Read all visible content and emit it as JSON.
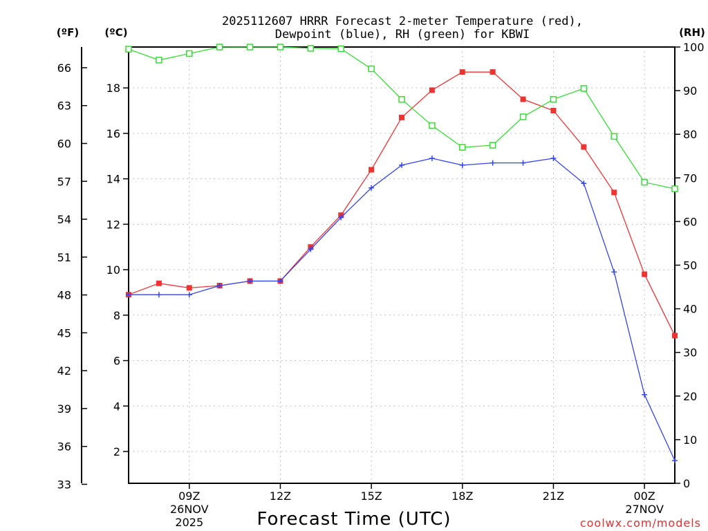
{
  "chart_data": {
    "type": "line",
    "title_line1": "2025112607 HRRR Forecast 2-meter Temperature (red),",
    "title_line2": "Dewpoint (blue), RH (green) for KBWI",
    "xlabel": "Forecast Time (UTC)",
    "left_unit_f": "(ºF)",
    "left_unit_c": "(ºC)",
    "right_unit": "(RH)",
    "credit": "coolwx.com/models",
    "x_hours": [
      7,
      8,
      9,
      10,
      11,
      12,
      13,
      14,
      15,
      16,
      17,
      18,
      19,
      20,
      21,
      22,
      23,
      24,
      25
    ],
    "x_ticks": [
      {
        "hour": 9,
        "label": "09Z",
        "sub1": "26NOV",
        "sub2": "2025"
      },
      {
        "hour": 12,
        "label": "12Z",
        "sub1": "",
        "sub2": ""
      },
      {
        "hour": 15,
        "label": "15Z",
        "sub1": "",
        "sub2": ""
      },
      {
        "hour": 18,
        "label": "18Z",
        "sub1": "",
        "sub2": ""
      },
      {
        "hour": 21,
        "label": "21Z",
        "sub1": "",
        "sub2": ""
      },
      {
        "hour": 24,
        "label": "00Z",
        "sub1": "27NOV",
        "sub2": ""
      }
    ],
    "xlim": [
      7,
      25
    ],
    "ylim_c": [
      0.6,
      19.8
    ],
    "ylim_rh": [
      0,
      100
    ],
    "c_ticks": [
      2,
      4,
      6,
      8,
      10,
      12,
      14,
      16,
      18
    ],
    "f_ticks": [
      33,
      36,
      39,
      42,
      45,
      48,
      51,
      54,
      57,
      60,
      63,
      66
    ],
    "rh_ticks": [
      0,
      10,
      20,
      30,
      40,
      50,
      60,
      70,
      80,
      90,
      100
    ],
    "series": [
      {
        "name": "Temperature",
        "color": "#ee3333",
        "marker": "filled-square",
        "axis": "c",
        "values": [
          8.9,
          9.4,
          9.2,
          9.3,
          9.5,
          9.5,
          11.0,
          12.4,
          14.4,
          16.7,
          17.9,
          18.7,
          18.7,
          17.5,
          17.0,
          15.4,
          13.4,
          9.8,
          7.1
        ]
      },
      {
        "name": "Dewpoint",
        "color": "#3344ee",
        "marker": "plus",
        "axis": "c",
        "values": [
          8.9,
          8.9,
          8.9,
          9.3,
          9.5,
          9.5,
          10.9,
          12.3,
          13.6,
          14.6,
          14.9,
          14.6,
          14.7,
          14.7,
          14.9,
          13.8,
          9.9,
          4.5,
          1.6
        ]
      },
      {
        "name": "RH",
        "color": "#33dd33",
        "marker": "open-square",
        "axis": "rh",
        "values": [
          99.5,
          97.0,
          98.5,
          100,
          100,
          100,
          99.7,
          99.6,
          95,
          88,
          82,
          77,
          77.5,
          84,
          88,
          90.5,
          79.5,
          69,
          67.5
        ]
      }
    ]
  }
}
